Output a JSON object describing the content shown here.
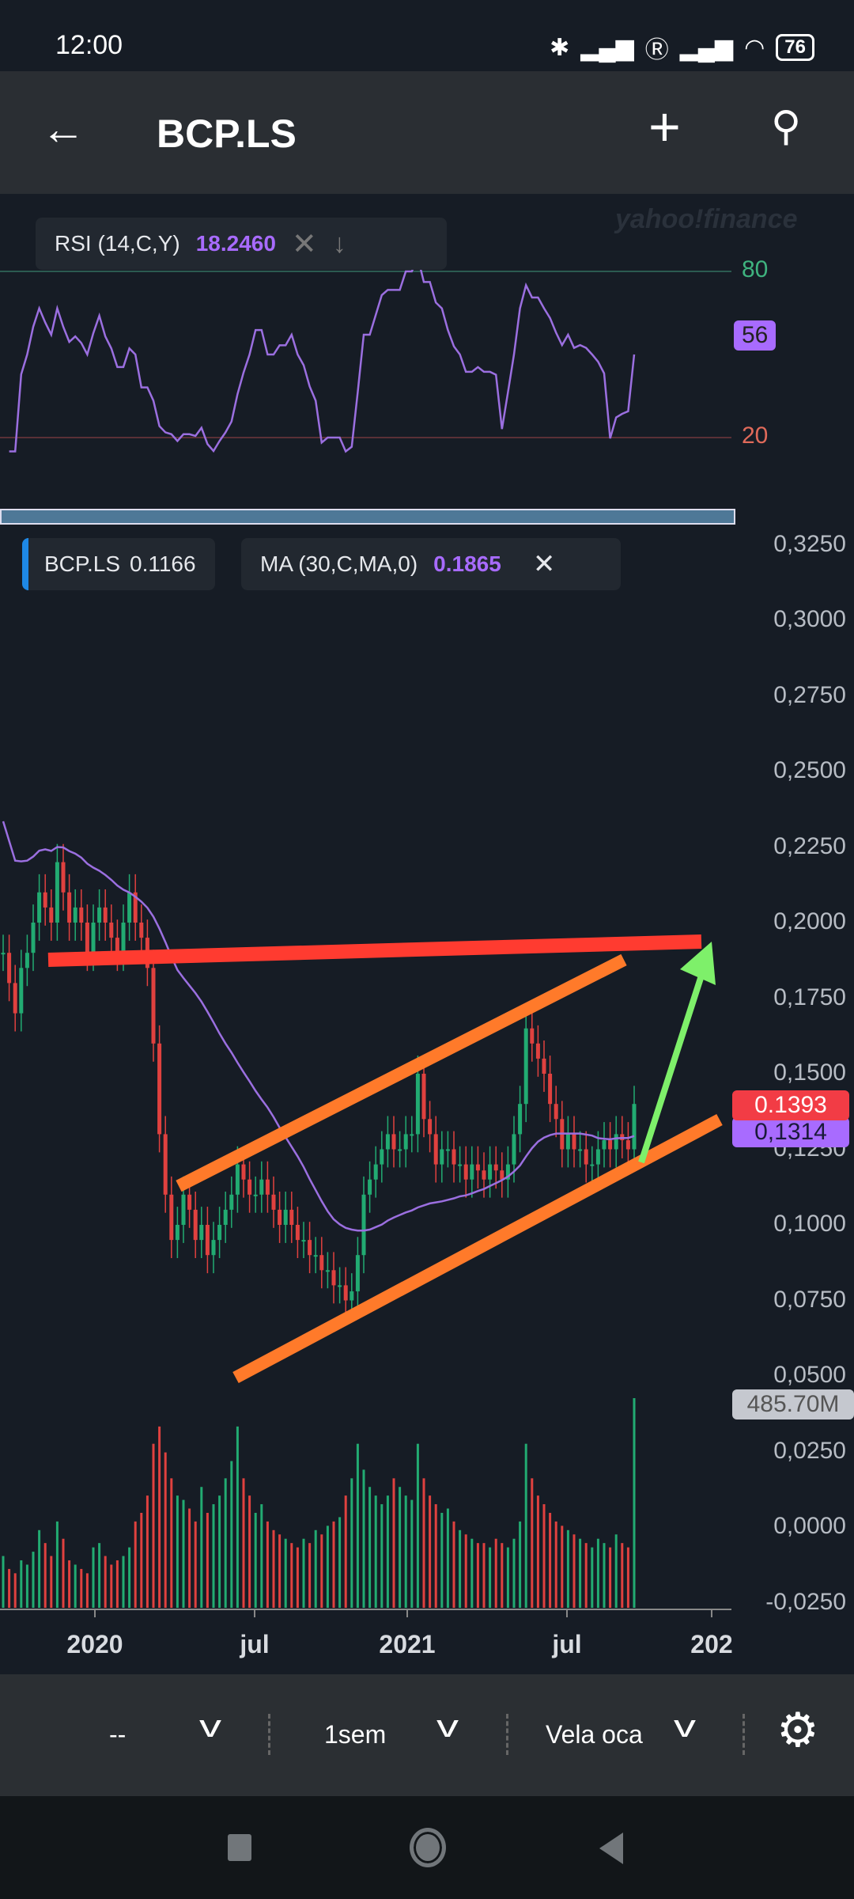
{
  "status": {
    "time": "12:00",
    "battery": "76"
  },
  "header": {
    "title": "BCP.LS",
    "back_icon": "arrow-left-icon",
    "add_icon": "plus-icon",
    "search_icon": "search-icon"
  },
  "watermark": "yahoo!finance",
  "rsi": {
    "label": "RSI (14,C,Y)",
    "value": "18.2460",
    "upper": "80",
    "lower": "20",
    "current": "56"
  },
  "legend": {
    "symbol": "BCP.LS",
    "price": "0.1166",
    "ma_label": "MA (30,C,MA,0)",
    "ma_value": "0.1865"
  },
  "badges": {
    "last": "0.1393",
    "ma": "0,1314",
    "volume": "485.70M"
  },
  "colors": {
    "up": "#22ab72",
    "down": "#e0413f",
    "ma": "#9b6fe0",
    "rsi": "#9b6fe0",
    "trend_red": "#ff3b30",
    "trend_orange": "#ff7a2a",
    "arrow_green": "#7ef06a"
  },
  "toolbar": {
    "range": "--",
    "interval": "1sem",
    "chart_type": "Vela oca"
  },
  "chart_data": {
    "type": "candlestick",
    "interval": "weekly",
    "y_ticks": [
      "0,3250",
      "0,3000",
      "0,2750",
      "0,2500",
      "0,2250",
      "0,2000",
      "0,1750",
      "0,1500",
      "0,1250",
      "0,1000",
      "0,0750",
      "0,0500",
      "0,0250",
      "0,0000",
      "-0,0250"
    ],
    "ylim": [
      -0.025,
      0.325
    ],
    "x_ticks": [
      "2020",
      "jul",
      "2021",
      "jul",
      "202"
    ],
    "closes": [
      0.19,
      0.18,
      0.17,
      0.185,
      0.19,
      0.2,
      0.21,
      0.205,
      0.2,
      0.22,
      0.21,
      0.2,
      0.205,
      0.2,
      0.19,
      0.2,
      0.205,
      0.2,
      0.195,
      0.19,
      0.2,
      0.21,
      0.2,
      0.195,
      0.185,
      0.16,
      0.13,
      0.11,
      0.095,
      0.1,
      0.11,
      0.105,
      0.095,
      0.1,
      0.09,
      0.095,
      0.1,
      0.105,
      0.11,
      0.12,
      0.115,
      0.11,
      0.11,
      0.115,
      0.11,
      0.105,
      0.1,
      0.105,
      0.1,
      0.095,
      0.095,
      0.09,
      0.09,
      0.085,
      0.085,
      0.08,
      0.08,
      0.075,
      0.078,
      0.09,
      0.11,
      0.115,
      0.12,
      0.125,
      0.13,
      0.125,
      0.125,
      0.13,
      0.13,
      0.15,
      0.135,
      0.13,
      0.12,
      0.125,
      0.125,
      0.12,
      0.12,
      0.115,
      0.12,
      0.118,
      0.115,
      0.12,
      0.118,
      0.115,
      0.12,
      0.13,
      0.14,
      0.165,
      0.16,
      0.155,
      0.15,
      0.14,
      0.135,
      0.125,
      0.13,
      0.125,
      0.125,
      0.12,
      0.12,
      0.125,
      0.128,
      0.125,
      0.13,
      0.128,
      0.125,
      0.14
    ],
    "volume_millions": [
      120,
      90,
      80,
      110,
      100,
      130,
      180,
      150,
      120,
      200,
      160,
      110,
      100,
      90,
      80,
      140,
      150,
      120,
      100,
      110,
      120,
      140,
      200,
      220,
      260,
      380,
      420,
      360,
      300,
      260,
      250,
      230,
      200,
      280,
      220,
      240,
      260,
      300,
      340,
      420,
      300,
      260,
      220,
      240,
      200,
      180,
      170,
      160,
      150,
      140,
      160,
      150,
      180,
      170,
      190,
      200,
      210,
      260,
      300,
      380,
      320,
      280,
      260,
      240,
      260,
      300,
      280,
      260,
      250,
      380,
      300,
      260,
      240,
      220,
      230,
      200,
      180,
      170,
      160,
      150,
      150,
      140,
      160,
      150,
      140,
      160,
      200,
      380,
      300,
      260,
      240,
      220,
      200,
      190,
      180,
      170,
      160,
      150,
      140,
      160,
      150,
      140,
      170,
      150,
      140,
      485.7
    ],
    "indicators": [
      "MA (30,C,MA,0)",
      "RSI (14,C,Y)"
    ],
    "annotations": [
      "red resistance line",
      "orange upper channel line",
      "orange lower channel line",
      "green up arrow"
    ]
  }
}
